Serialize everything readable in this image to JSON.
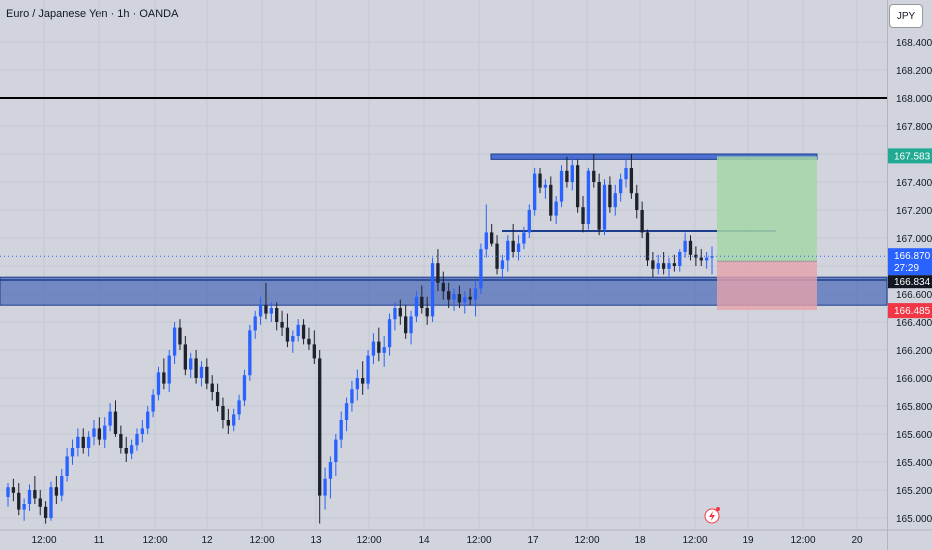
{
  "header": {
    "title": "Euro / Japanese Yen · 1h · OANDA",
    "currency": "JPY"
  },
  "chart_data": {
    "type": "candlestick",
    "y_axis": {
      "min": 165.0,
      "max": 168.4,
      "ticks": [
        "168.400",
        "168.200",
        "168.000",
        "167.800",
        "167.600",
        "167.400",
        "167.200",
        "167.000",
        "166.800",
        "166.600",
        "166.400",
        "166.200",
        "166.000",
        "165.800",
        "165.600",
        "165.400",
        "165.200",
        "165.000"
      ]
    },
    "x_axis": {
      "ticks": [
        "12:00",
        "11",
        "12:00",
        "12",
        "12:00",
        "13",
        "12:00",
        "14",
        "12:00",
        "17",
        "12:00",
        "18",
        "12:00",
        "19",
        "12:00",
        "20"
      ]
    },
    "candles_ohlc": [
      [
        165.15,
        165.25,
        165.08,
        165.22
      ],
      [
        165.22,
        165.28,
        165.12,
        165.18
      ],
      [
        165.18,
        165.25,
        165.02,
        165.06
      ],
      [
        165.06,
        165.14,
        164.98,
        165.1
      ],
      [
        165.1,
        165.24,
        165.05,
        165.2
      ],
      [
        165.2,
        165.3,
        165.1,
        165.14
      ],
      [
        165.14,
        165.2,
        165.02,
        165.08
      ],
      [
        165.08,
        165.12,
        164.96,
        165.0
      ],
      [
        165.0,
        165.26,
        164.98,
        165.22
      ],
      [
        165.22,
        165.3,
        165.1,
        165.16
      ],
      [
        165.16,
        165.35,
        165.12,
        165.3
      ],
      [
        165.3,
        165.5,
        165.26,
        165.44
      ],
      [
        165.44,
        165.56,
        165.38,
        165.5
      ],
      [
        165.5,
        165.64,
        165.44,
        165.58
      ],
      [
        165.58,
        165.64,
        165.46,
        165.5
      ],
      [
        165.5,
        165.62,
        165.44,
        165.58
      ],
      [
        165.58,
        165.7,
        165.52,
        165.64
      ],
      [
        165.64,
        165.72,
        165.52,
        165.56
      ],
      [
        165.56,
        165.72,
        165.5,
        165.66
      ],
      [
        165.66,
        165.82,
        165.62,
        165.76
      ],
      [
        165.76,
        165.84,
        165.58,
        165.6
      ],
      [
        165.6,
        165.66,
        165.46,
        165.5
      ],
      [
        165.5,
        165.58,
        165.4,
        165.46
      ],
      [
        165.46,
        165.56,
        165.42,
        165.52
      ],
      [
        165.52,
        165.64,
        165.48,
        165.6
      ],
      [
        165.6,
        165.7,
        165.54,
        165.64
      ],
      [
        165.64,
        165.8,
        165.6,
        165.76
      ],
      [
        165.76,
        165.92,
        165.72,
        165.88
      ],
      [
        165.88,
        166.08,
        165.84,
        166.04
      ],
      [
        166.04,
        166.14,
        165.92,
        165.96
      ],
      [
        165.96,
        166.2,
        165.9,
        166.16
      ],
      [
        166.16,
        166.4,
        166.1,
        166.36
      ],
      [
        166.36,
        166.42,
        166.2,
        166.24
      ],
      [
        166.24,
        166.3,
        166.02,
        166.06
      ],
      [
        166.06,
        166.18,
        166.0,
        166.14
      ],
      [
        166.14,
        166.2,
        165.96,
        166.0
      ],
      [
        166.0,
        166.12,
        165.94,
        166.08
      ],
      [
        166.08,
        166.14,
        165.92,
        165.96
      ],
      [
        165.96,
        166.02,
        165.84,
        165.9
      ],
      [
        165.9,
        165.96,
        165.76,
        165.8
      ],
      [
        165.8,
        165.86,
        165.64,
        165.7
      ],
      [
        165.7,
        165.78,
        165.6,
        165.66
      ],
      [
        165.66,
        165.78,
        165.62,
        165.74
      ],
      [
        165.74,
        165.88,
        165.7,
        165.84
      ],
      [
        165.84,
        166.06,
        165.8,
        166.02
      ],
      [
        166.02,
        166.38,
        165.98,
        166.34
      ],
      [
        166.34,
        166.48,
        166.28,
        166.44
      ],
      [
        166.44,
        166.58,
        166.38,
        166.52
      ],
      [
        166.52,
        166.68,
        166.42,
        166.46
      ],
      [
        166.46,
        166.54,
        166.4,
        166.5
      ],
      [
        166.5,
        166.54,
        166.34,
        166.4
      ],
      [
        166.4,
        166.48,
        166.3,
        166.36
      ],
      [
        166.36,
        166.46,
        166.22,
        166.26
      ],
      [
        166.26,
        166.34,
        166.18,
        166.3
      ],
      [
        166.3,
        166.42,
        166.26,
        166.38
      ],
      [
        166.38,
        166.42,
        166.24,
        166.28
      ],
      [
        166.28,
        166.36,
        166.2,
        166.24
      ],
      [
        166.24,
        166.34,
        166.1,
        166.14
      ],
      [
        166.14,
        166.2,
        164.96,
        165.16
      ],
      [
        165.16,
        165.36,
        165.06,
        165.28
      ],
      [
        165.28,
        165.44,
        165.14,
        165.4
      ],
      [
        165.4,
        165.6,
        165.3,
        165.56
      ],
      [
        165.56,
        165.76,
        165.5,
        165.7
      ],
      [
        165.7,
        165.86,
        165.62,
        165.82
      ],
      [
        165.82,
        165.98,
        165.76,
        165.92
      ],
      [
        165.92,
        166.06,
        165.84,
        166.0
      ],
      [
        166.0,
        166.12,
        165.88,
        165.96
      ],
      [
        165.96,
        166.2,
        165.92,
        166.16
      ],
      [
        166.16,
        166.32,
        166.1,
        166.26
      ],
      [
        166.26,
        166.36,
        166.12,
        166.18
      ],
      [
        166.18,
        166.3,
        166.08,
        166.22
      ],
      [
        166.22,
        166.46,
        166.16,
        166.42
      ],
      [
        166.42,
        166.54,
        166.34,
        166.5
      ],
      [
        166.5,
        166.56,
        166.38,
        166.44
      ],
      [
        166.44,
        166.52,
        166.28,
        166.32
      ],
      [
        166.32,
        166.48,
        166.24,
        166.44
      ],
      [
        166.44,
        166.62,
        166.4,
        166.58
      ],
      [
        166.58,
        166.66,
        166.46,
        166.5
      ],
      [
        166.5,
        166.58,
        166.38,
        166.44
      ],
      [
        166.44,
        166.86,
        166.4,
        166.82
      ],
      [
        166.82,
        166.92,
        166.62,
        166.68
      ],
      [
        166.68,
        166.76,
        166.56,
        166.62
      ],
      [
        166.62,
        166.68,
        166.5,
        166.56
      ],
      [
        166.56,
        166.64,
        166.48,
        166.6
      ],
      [
        166.6,
        166.66,
        166.5,
        166.54
      ],
      [
        166.54,
        166.62,
        166.46,
        166.58
      ],
      [
        166.58,
        166.64,
        166.52,
        166.56
      ],
      [
        166.56,
        166.7,
        166.44,
        166.64
      ],
      [
        166.64,
        166.96,
        166.6,
        166.92
      ],
      [
        166.92,
        167.24,
        166.86,
        167.04
      ],
      [
        167.04,
        167.1,
        166.94,
        166.96
      ],
      [
        166.96,
        167.02,
        166.74,
        166.78
      ],
      [
        166.78,
        166.88,
        166.7,
        166.84
      ],
      [
        166.84,
        167.02,
        166.76,
        166.98
      ],
      [
        166.98,
        167.1,
        166.86,
        166.9
      ],
      [
        166.9,
        167.02,
        166.84,
        166.96
      ],
      [
        166.96,
        167.08,
        166.92,
        167.04
      ],
      [
        167.04,
        167.24,
        167.0,
        167.2
      ],
      [
        167.2,
        167.5,
        167.16,
        167.46
      ],
      [
        167.46,
        167.5,
        167.32,
        167.36
      ],
      [
        167.36,
        167.42,
        167.28,
        167.38
      ],
      [
        167.38,
        167.44,
        167.12,
        167.16
      ],
      [
        167.16,
        167.3,
        167.1,
        167.26
      ],
      [
        167.26,
        167.52,
        167.22,
        167.48
      ],
      [
        167.48,
        167.58,
        167.36,
        167.4
      ],
      [
        167.4,
        167.58,
        167.34,
        167.52
      ],
      [
        167.52,
        167.56,
        167.18,
        167.22
      ],
      [
        167.22,
        167.3,
        167.04,
        167.1
      ],
      [
        167.1,
        167.5,
        167.06,
        167.48
      ],
      [
        167.48,
        167.6,
        167.36,
        167.4
      ],
      [
        167.4,
        167.46,
        167.02,
        167.06
      ],
      [
        167.06,
        167.42,
        167.02,
        167.38
      ],
      [
        167.38,
        167.44,
        167.18,
        167.22
      ],
      [
        167.22,
        167.38,
        167.16,
        167.32
      ],
      [
        167.32,
        167.46,
        167.26,
        167.42
      ],
      [
        167.42,
        167.56,
        167.36,
        167.5
      ],
      [
        167.5,
        167.6,
        167.28,
        167.32
      ],
      [
        167.32,
        167.38,
        167.14,
        167.2
      ],
      [
        167.2,
        167.26,
        167.0,
        167.04
      ],
      [
        167.04,
        167.06,
        166.8,
        166.84
      ],
      [
        166.84,
        166.9,
        166.72,
        166.78
      ],
      [
        166.78,
        166.88,
        166.74,
        166.82
      ],
      [
        166.82,
        166.9,
        166.74,
        166.78
      ],
      [
        166.78,
        166.86,
        166.72,
        166.82
      ],
      [
        166.82,
        166.88,
        166.76,
        166.8
      ],
      [
        166.8,
        166.92,
        166.76,
        166.9
      ],
      [
        166.9,
        167.04,
        166.86,
        166.98
      ],
      [
        166.98,
        167.02,
        166.84,
        166.88
      ],
      [
        166.88,
        166.94,
        166.8,
        166.86
      ],
      [
        166.86,
        166.92,
        166.8,
        166.84
      ],
      [
        166.84,
        166.9,
        166.78,
        166.86
      ],
      [
        166.86,
        166.94,
        166.74,
        166.87
      ]
    ],
    "last_price": "166.870",
    "countdown": "27:29",
    "zone_price": "166.834",
    "target_price": "167.583",
    "stop_price": "166.485",
    "levels": {
      "horizontal_line": 168.0,
      "resistance_top": 167.6,
      "resistance_bottom": 167.583,
      "mid_line": 167.05,
      "support_top": 166.72,
      "support_bottom": 166.52
    },
    "position": {
      "entry": 166.834,
      "target": 167.583,
      "stop": 166.485
    },
    "colors": {
      "up": "#2962ff",
      "down": "#1e222d",
      "target_fill": "#a5d6a7",
      "stop_fill": "#e6a1ab",
      "zone": "#3d5fb4",
      "price_line": "#2962ff",
      "target_label": "#22ab94",
      "stop_label": "#f23645",
      "last_label": "#2962ff",
      "zone_label": "#131722"
    }
  }
}
